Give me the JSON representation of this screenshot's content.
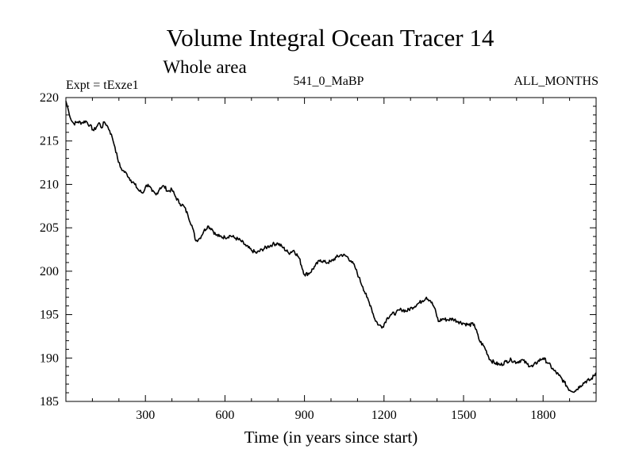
{
  "chart_data": {
    "type": "line",
    "title": "Volume Integral Ocean Tracer 14",
    "subtitle": "Whole area",
    "left_label": "Expt = tExze1",
    "center_label": "541_0_MaBP",
    "right_label": "ALL_MONTHS",
    "xlabel": "Time (in years since start)",
    "ylabel": "",
    "xlim": [
      0,
      2000
    ],
    "ylim": [
      185,
      220
    ],
    "x_ticks": [
      300,
      600,
      900,
      1200,
      1500,
      1800
    ],
    "x_tick_labels": [
      "300",
      "600",
      "900",
      "1200",
      "1500",
      "1800"
    ],
    "y_ticks": [
      185,
      190,
      195,
      200,
      205,
      210,
      215,
      220
    ],
    "y_tick_labels": [
      "185",
      "190",
      "195",
      "200",
      "205",
      "210",
      "215",
      "220"
    ],
    "grid": false,
    "series": [
      {
        "name": "Volume Integral Ocean Tracer 14",
        "x": [
          0,
          10,
          20,
          30,
          45,
          60,
          75,
          90,
          105,
          115,
          125,
          135,
          145,
          155,
          165,
          175,
          185,
          195,
          205,
          215,
          230,
          245,
          260,
          275,
          290,
          300,
          310,
          325,
          340,
          355,
          370,
          385,
          400,
          415,
          430,
          445,
          460,
          475,
          490,
          505,
          520,
          535,
          550,
          565,
          580,
          600,
          620,
          640,
          660,
          680,
          700,
          720,
          740,
          760,
          780,
          800,
          820,
          840,
          860,
          880,
          900,
          920,
          940,
          960,
          980,
          1000,
          1020,
          1040,
          1060,
          1075,
          1090,
          1105,
          1120,
          1135,
          1150,
          1165,
          1180,
          1195,
          1210,
          1225,
          1245,
          1265,
          1285,
          1305,
          1325,
          1345,
          1360,
          1375,
          1390,
          1405,
          1420,
          1440,
          1460,
          1480,
          1500,
          1520,
          1540,
          1560,
          1580,
          1600,
          1620,
          1640,
          1660,
          1680,
          1700,
          1720,
          1740,
          1760,
          1780,
          1800,
          1820,
          1840,
          1860,
          1880,
          1900,
          1920,
          1940,
          1960,
          1980,
          2000
        ],
        "values": [
          219.6,
          218.5,
          217.4,
          217.0,
          217.2,
          217.1,
          217.3,
          216.8,
          216.2,
          216.6,
          217.1,
          216.5,
          217.2,
          216.8,
          216.2,
          215.4,
          214.3,
          213.0,
          212.0,
          211.6,
          211.2,
          210.5,
          210.0,
          209.3,
          209.0,
          209.7,
          210.0,
          209.2,
          208.8,
          209.6,
          209.8,
          209.2,
          209.4,
          208.5,
          207.8,
          207.5,
          206.5,
          205.3,
          203.5,
          203.8,
          204.6,
          205.2,
          204.9,
          204.2,
          204.0,
          203.9,
          204.1,
          203.8,
          203.5,
          202.9,
          202.4,
          202.1,
          202.5,
          202.8,
          203.1,
          203.2,
          202.7,
          202.1,
          202.4,
          201.5,
          199.6,
          199.8,
          200.6,
          201.3,
          201.0,
          201.1,
          201.6,
          201.9,
          201.7,
          201.2,
          200.5,
          199.3,
          198.2,
          197.0,
          196.0,
          194.5,
          193.8,
          193.6,
          194.5,
          195.0,
          195.2,
          195.6,
          195.4,
          195.8,
          196.2,
          196.6,
          197.0,
          196.6,
          195.8,
          194.2,
          194.5,
          194.4,
          194.5,
          194.2,
          194.0,
          193.8,
          193.9,
          192.0,
          191.2,
          189.8,
          189.4,
          189.2,
          189.6,
          189.8,
          189.5,
          189.8,
          189.3,
          189.0,
          189.6,
          190.0,
          189.4,
          188.6,
          188.0,
          187.2,
          186.3,
          186.2,
          186.8,
          187.3,
          187.5,
          188.3
        ]
      }
    ]
  }
}
